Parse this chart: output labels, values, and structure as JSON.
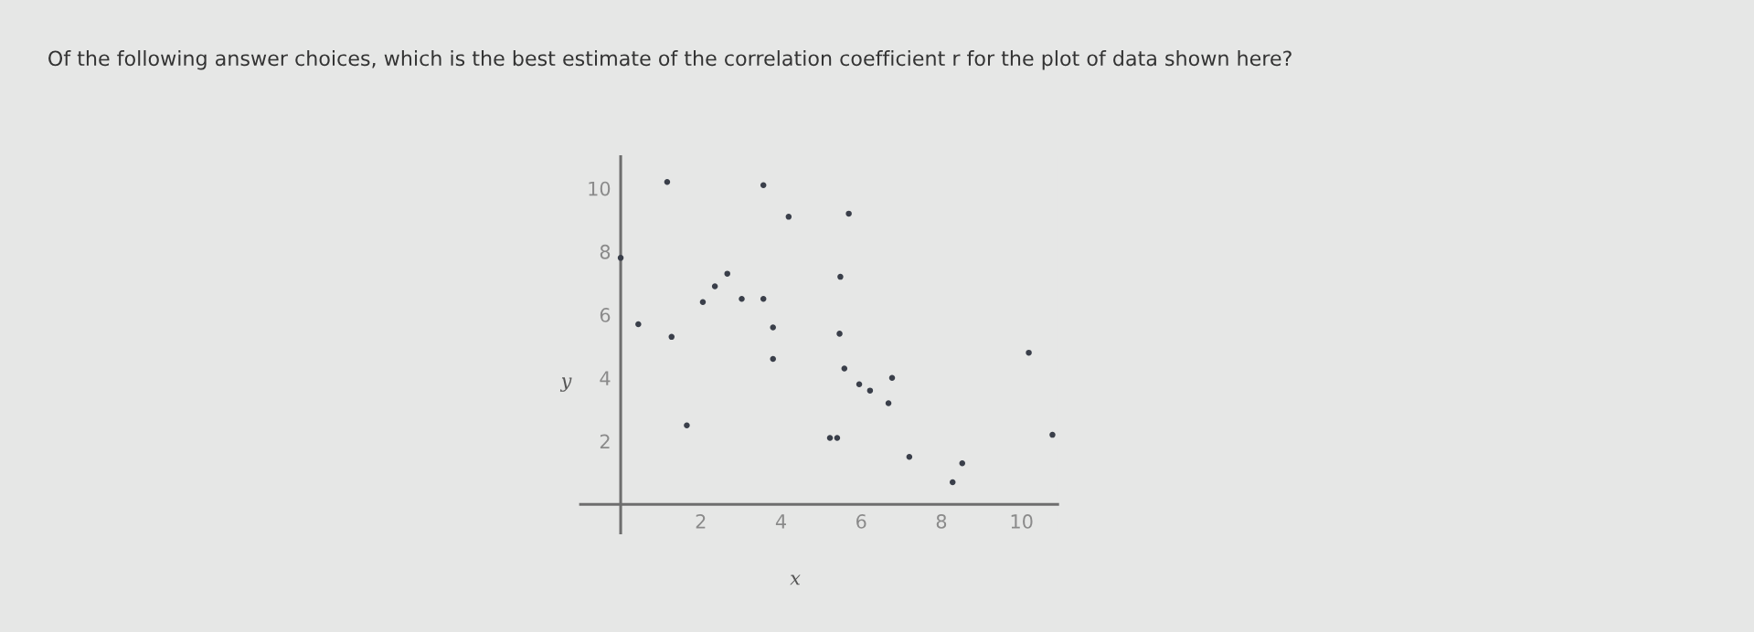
{
  "chart_data": {
    "type": "scatter",
    "title": "Of the following answer choices, which is the best estimate of the correlation coefficient r for the plot of data shown here?",
    "xlabel": "x",
    "ylabel": "y",
    "x": [
      0,
      0.44,
      1.16,
      1.27,
      1.65,
      2.05,
      2.35,
      2.66,
      3.02,
      3.56,
      3.56,
      3.8,
      3.8,
      4.19,
      5.69,
      5.48,
      5.46,
      5.58,
      5.95,
      6.22,
      6.77,
      6.68,
      5.22,
      5.4,
      7.2,
      8.52,
      8.28,
      10.18,
      10.77
    ],
    "series": [
      {
        "color": "#3a3f4a",
        "values": [
          7.8,
          5.7,
          10.2,
          5.3,
          2.5,
          6.4,
          6.9,
          7.3,
          6.5,
          6.5,
          10.1,
          5.6,
          4.6,
          9.1,
          9.2,
          7.2,
          5.4,
          4.3,
          3.8,
          3.6,
          4.0,
          3.2,
          2.1,
          2.1,
          1.5,
          1.3,
          0.7,
          4.8,
          2.2
        ]
      }
    ],
    "xlim": [
      -1,
      10.9
    ],
    "ylim": [
      -0.9,
      11
    ],
    "xticks": [
      2,
      4,
      6,
      8,
      10
    ],
    "yticks": [
      2,
      4,
      6,
      8,
      10
    ],
    "grid": false,
    "marker": "circle"
  }
}
